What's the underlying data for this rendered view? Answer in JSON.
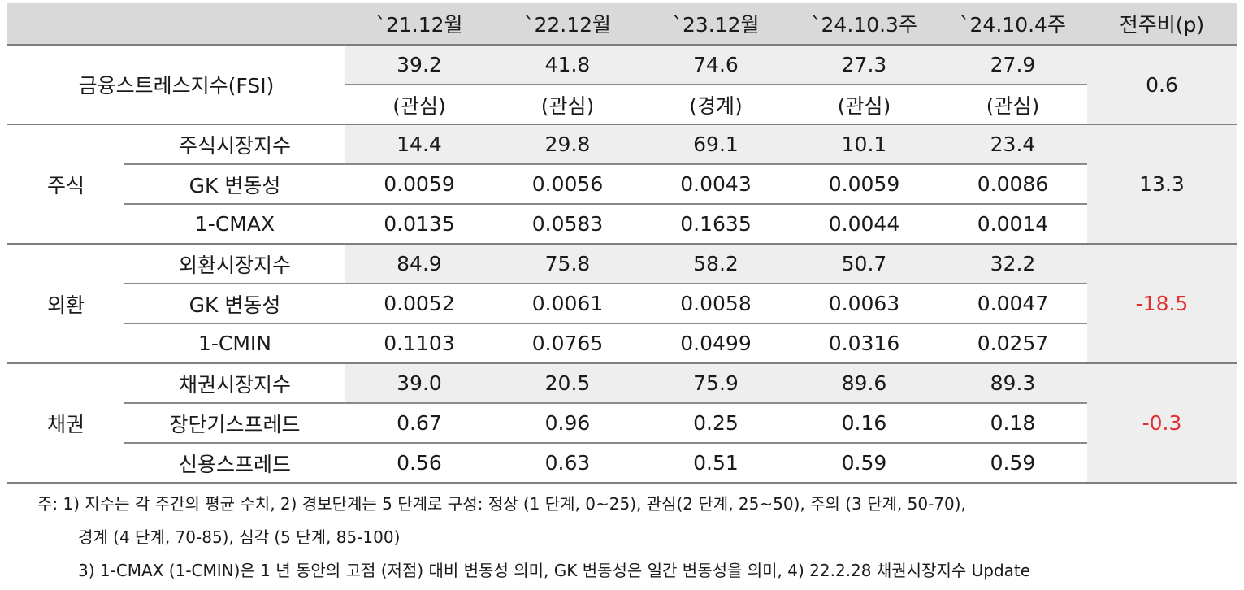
{
  "header": {
    "corner": "",
    "columns": [
      "`21.12월",
      "`22.12월",
      "`23.12월",
      "`24.10.3주",
      "`24.10.4주"
    ],
    "change": "전주비(p)"
  },
  "fsi": {
    "label": "금융스트레스지수(FSI)",
    "values": [
      "39.2",
      "41.8",
      "74.6",
      "27.3",
      "27.9"
    ],
    "levels": [
      "(관심)",
      "(관심)",
      "(경계)",
      "(관심)",
      "(관심)"
    ],
    "change": "0.6"
  },
  "groups": [
    {
      "name": "주식",
      "change": "13.3",
      "change_negative": false,
      "rows": [
        {
          "label": "주식시장지수",
          "values": [
            "14.4",
            "29.8",
            "69.1",
            "10.1",
            "23.4"
          ]
        },
        {
          "label": "GK 변동성",
          "values": [
            "0.0059",
            "0.0056",
            "0.0043",
            "0.0059",
            "0.0086"
          ]
        },
        {
          "label": "1-CMAX",
          "values": [
            "0.0135",
            "0.0583",
            "0.1635",
            "0.0044",
            "0.0014"
          ]
        }
      ]
    },
    {
      "name": "외환",
      "change": "-18.5",
      "change_negative": true,
      "rows": [
        {
          "label": "외환시장지수",
          "values": [
            "84.9",
            "75.8",
            "58.2",
            "50.7",
            "32.2"
          ]
        },
        {
          "label": "GK 변동성",
          "values": [
            "0.0052",
            "0.0061",
            "0.0058",
            "0.0063",
            "0.0047"
          ]
        },
        {
          "label": "1-CMIN",
          "values": [
            "0.1103",
            "0.0765",
            "0.0499",
            "0.0316",
            "0.0257"
          ]
        }
      ]
    },
    {
      "name": "채권",
      "change": "-0.3",
      "change_negative": true,
      "rows": [
        {
          "label": "채권시장지수",
          "values": [
            "39.0",
            "20.5",
            "75.9",
            "89.6",
            "89.3"
          ]
        },
        {
          "label": "장단기스프레드",
          "values": [
            "0.67",
            "0.96",
            "0.25",
            "0.16",
            "0.18"
          ]
        },
        {
          "label": "신용스프레드",
          "values": [
            "0.56",
            "0.63",
            "0.51",
            "0.59",
            "0.59"
          ]
        }
      ]
    }
  ],
  "colors": {
    "negative": "#e03030",
    "header_bg": "#d9d9d9",
    "shade_bg": "#eeeeee"
  },
  "notes": [
    "주: 1) 지수는 각 주간의 평균 수치, 2) 경보단계는 5 단계로 구성: 정상 (1 단계, 0~25), 관심(2 단계, 25~50), 주의 (3 단계, 50-70),",
    "경계 (4 단계, 70-85), 심각 (5 단계, 85-100)",
    "3) 1-CMAX (1-CMIN)은 1 년 동안의 고점 (저점) 대비 변동성 의미, GK 변동성은 일간 변동성을 의미, 4) 22.2.28 채권시장지수 Update"
  ]
}
